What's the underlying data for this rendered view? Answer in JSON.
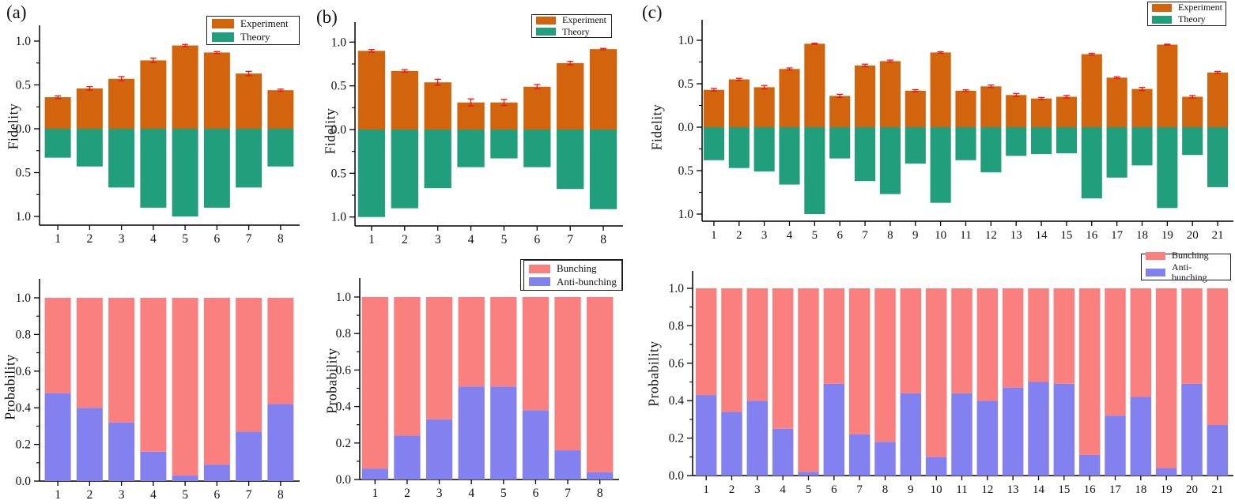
{
  "figure": {
    "background": "#ffffff"
  },
  "colors": {
    "experiment": "#d2640e",
    "theory": "#219e7c",
    "bunching": "#fa8080",
    "anti_bunching": "#8381f0",
    "error_bar": "#ea1515",
    "axis": "#000000",
    "legend_border": "#1c1c1c",
    "text": "#111111"
  },
  "panels": [
    {
      "label": "(a)"
    },
    {
      "label": "(b)"
    },
    {
      "label": "(c)"
    }
  ],
  "chart_data": [
    {
      "panel": "a",
      "kind": "fidelity",
      "type": "bar",
      "title": "",
      "xlabel": "",
      "ylabel": "Fidelity",
      "categories": [
        1,
        2,
        3,
        4,
        5,
        6,
        7,
        8
      ],
      "series": [
        {
          "name": "Experiment",
          "direction": "up",
          "color": "experiment",
          "values": [
            0.36,
            0.46,
            0.57,
            0.78,
            0.95,
            0.87,
            0.63,
            0.44
          ],
          "errors": [
            0.015,
            0.02,
            0.025,
            0.025,
            0.012,
            0.01,
            0.025,
            0.012
          ]
        },
        {
          "name": "Theory",
          "direction": "down",
          "color": "theory",
          "values": [
            0.33,
            0.43,
            0.67,
            0.9,
            1.0,
            0.9,
            0.67,
            0.43
          ]
        }
      ],
      "ylim": [
        -1.1,
        1.2
      ],
      "grid": false,
      "legend_position": "top-right",
      "yticks": [
        "1.0",
        "0.5",
        "0.0",
        "0.5",
        "1.0"
      ],
      "ytick_values": [
        1.0,
        0.5,
        0.0,
        -0.5,
        -1.0
      ]
    },
    {
      "panel": "b",
      "kind": "fidelity",
      "type": "bar",
      "title": "",
      "xlabel": "",
      "ylabel": "Fidelity",
      "categories": [
        1,
        2,
        3,
        4,
        5,
        6,
        7,
        8
      ],
      "series": [
        {
          "name": "Experiment",
          "direction": "up",
          "color": "experiment",
          "values": [
            0.9,
            0.67,
            0.54,
            0.31,
            0.31,
            0.49,
            0.76,
            0.92
          ],
          "errors": [
            0.015,
            0.015,
            0.035,
            0.04,
            0.035,
            0.025,
            0.02,
            0.008
          ]
        },
        {
          "name": "Theory",
          "direction": "down",
          "color": "theory",
          "values": [
            1.0,
            0.9,
            0.67,
            0.43,
            0.33,
            0.43,
            0.68,
            0.91
          ]
        }
      ],
      "ylim": [
        -1.1,
        1.2
      ],
      "grid": false,
      "legend_position": "top-right",
      "yticks": [
        "1.0",
        "0.5",
        "0.0",
        "0.5",
        "1.0"
      ],
      "ytick_values": [
        1.0,
        0.5,
        0.0,
        -0.5,
        -1.0
      ]
    },
    {
      "panel": "c",
      "kind": "fidelity",
      "type": "bar",
      "title": "",
      "xlabel": "",
      "ylabel": "Fidelity",
      "categories": [
        1,
        2,
        3,
        4,
        5,
        6,
        7,
        8,
        9,
        10,
        11,
        12,
        13,
        14,
        15,
        16,
        17,
        18,
        19,
        20,
        21
      ],
      "series": [
        {
          "name": "Experiment",
          "direction": "up",
          "color": "experiment",
          "values": [
            0.43,
            0.55,
            0.46,
            0.67,
            0.96,
            0.36,
            0.71,
            0.76,
            0.42,
            0.86,
            0.42,
            0.47,
            0.37,
            0.33,
            0.35,
            0.84,
            0.57,
            0.44,
            0.95,
            0.35,
            0.63
          ],
          "errors": [
            0.015,
            0.012,
            0.02,
            0.012,
            0.006,
            0.018,
            0.015,
            0.012,
            0.012,
            0.008,
            0.01,
            0.015,
            0.018,
            0.012,
            0.015,
            0.01,
            0.01,
            0.018,
            0.005,
            0.015,
            0.012
          ]
        },
        {
          "name": "Theory",
          "direction": "down",
          "color": "theory",
          "values": [
            0.38,
            0.47,
            0.51,
            0.66,
            1.0,
            0.36,
            0.62,
            0.77,
            0.42,
            0.87,
            0.38,
            0.52,
            0.33,
            0.31,
            0.3,
            0.82,
            0.58,
            0.44,
            0.93,
            0.32,
            0.69
          ]
        }
      ],
      "ylim": [
        -1.1,
        1.2
      ],
      "grid": false,
      "legend_position": "top-right",
      "yticks": [
        "1.0",
        "0.5",
        "0.0",
        "0.5",
        "1.0"
      ],
      "ytick_values": [
        1.0,
        0.5,
        0.0,
        -0.5,
        -1.0
      ]
    },
    {
      "panel": "a",
      "kind": "probability",
      "type": "stacked-bar",
      "title": "",
      "xlabel": "",
      "ylabel": "Probability",
      "categories": [
        1,
        2,
        3,
        4,
        5,
        6,
        7,
        8
      ],
      "series": [
        {
          "name": "Bunching",
          "color": "bunching",
          "values": [
            0.52,
            0.6,
            0.68,
            0.84,
            0.97,
            0.91,
            0.73,
            0.58
          ]
        },
        {
          "name": "Anti-bunching",
          "color": "anti_bunching",
          "values": [
            0.48,
            0.4,
            0.32,
            0.16,
            0.03,
            0.09,
            0.27,
            0.42
          ]
        }
      ],
      "ylim": [
        0,
        1.1
      ],
      "grid": false,
      "legend_position": "top-right",
      "yticks": [
        "1.0",
        "0.8",
        "0.6",
        "0.4",
        "0.2",
        "0.0"
      ],
      "ytick_values": [
        1.0,
        0.8,
        0.6,
        0.4,
        0.2,
        0.0
      ]
    },
    {
      "panel": "b",
      "kind": "probability",
      "type": "stacked-bar",
      "title": "",
      "xlabel": "",
      "ylabel": "Probability",
      "categories": [
        1,
        2,
        3,
        4,
        5,
        6,
        7,
        8
      ],
      "series": [
        {
          "name": "Bunching",
          "color": "bunching",
          "values": [
            0.94,
            0.76,
            0.67,
            0.49,
            0.49,
            0.62,
            0.84,
            0.96
          ]
        },
        {
          "name": "Anti-bunching",
          "color": "anti_bunching",
          "values": [
            0.06,
            0.24,
            0.33,
            0.51,
            0.51,
            0.38,
            0.16,
            0.04
          ]
        }
      ],
      "ylim": [
        0,
        1.1
      ],
      "grid": false,
      "legend_position": "top-right",
      "yticks": [
        "1.0",
        "0.8",
        "0.6",
        "0.4",
        "0.2",
        "0.0"
      ],
      "ytick_values": [
        1.0,
        0.8,
        0.6,
        0.4,
        0.2,
        0.0
      ]
    },
    {
      "panel": "c",
      "kind": "probability",
      "type": "stacked-bar",
      "title": "",
      "xlabel": "",
      "ylabel": "Probability",
      "categories": [
        1,
        2,
        3,
        4,
        5,
        6,
        7,
        8,
        9,
        10,
        11,
        12,
        13,
        14,
        15,
        16,
        17,
        18,
        19,
        20,
        21
      ],
      "series": [
        {
          "name": "Bunching",
          "color": "bunching",
          "values": [
            0.57,
            0.66,
            0.6,
            0.75,
            0.98,
            0.51,
            0.78,
            0.82,
            0.56,
            0.9,
            0.56,
            0.6,
            0.53,
            0.5,
            0.51,
            0.89,
            0.68,
            0.58,
            0.96,
            0.51,
            0.73
          ]
        },
        {
          "name": "Anti-bunching",
          "color": "anti_bunching",
          "values": [
            0.43,
            0.34,
            0.4,
            0.25,
            0.02,
            0.49,
            0.22,
            0.18,
            0.44,
            0.1,
            0.44,
            0.4,
            0.47,
            0.5,
            0.49,
            0.11,
            0.32,
            0.42,
            0.04,
            0.49,
            0.27
          ]
        }
      ],
      "ylim": [
        0,
        1.1
      ],
      "grid": false,
      "legend_position": "top-right",
      "yticks": [
        "1.0",
        "0.8",
        "0.6",
        "0.4",
        "0.2",
        "0.0"
      ],
      "ytick_values": [
        1.0,
        0.8,
        0.6,
        0.4,
        0.2,
        0.0
      ]
    }
  ]
}
